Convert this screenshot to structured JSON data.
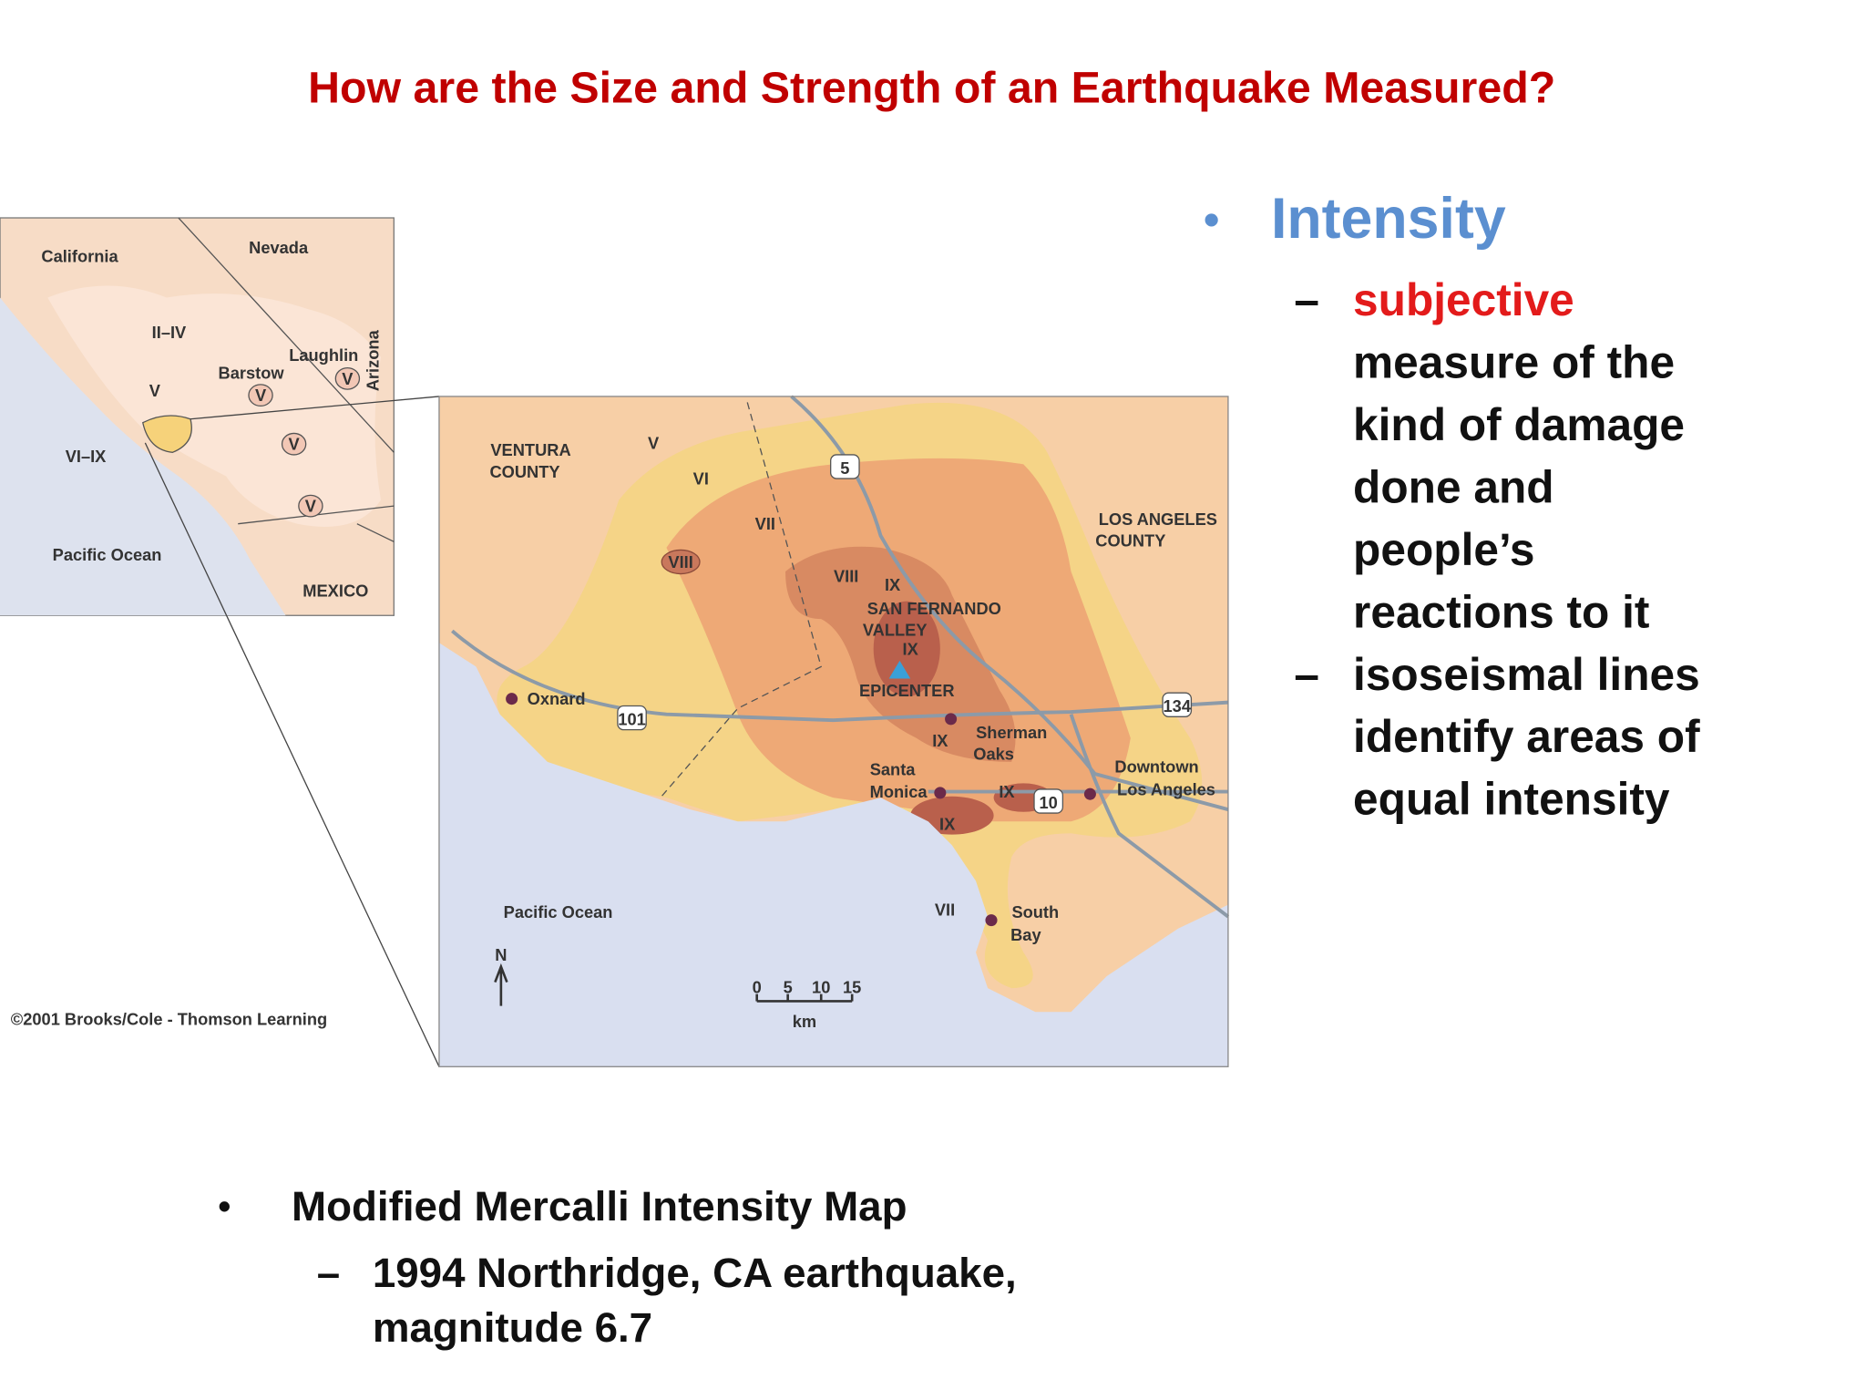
{
  "title": "How are the Size and Strength of an Earthquake Measured?",
  "bullets": [
    {
      "text": "Intensity",
      "subitems": [
        {
          "lines": [
            "subjective",
            "measure of the",
            "kind of damage",
            "done and",
            "people’s",
            "reactions to it"
          ]
        },
        {
          "lines": [
            "isoseismal lines",
            "identify areas of",
            "equal intensity"
          ]
        }
      ]
    }
  ],
  "caption": {
    "text": "Modified Mercalli Intensity Map",
    "subitems": [
      {
        "lines": [
          "1994 Northridge, CA earthquake,",
          "magnitude 6.7"
        ]
      }
    ]
  },
  "inset": {
    "labels": [
      "California",
      "Nevada",
      "Arizona",
      "II–IV",
      "V",
      "Barstow",
      "Laughlin",
      "V",
      "V",
      "V",
      "V",
      "VI–IX",
      "Pacific Ocean",
      "MEXICO",
      "©2001 Brooks/Cole - Thomson Learning"
    ]
  },
  "main_map": {
    "labels": [
      "VENTURA",
      "COUNTY",
      "V",
      "VI",
      "VII",
      "VIII",
      "VIII",
      "IX",
      "SAN FERNANDO",
      "VALLEY",
      "IX",
      "EPICENTER",
      "LOS ANGELES",
      "COUNTY",
      "Oxnard",
      "101",
      "5",
      "134",
      "Sherman",
      "Oaks",
      "IX",
      "Santa",
      "Monica",
      "IX",
      "10",
      "IX",
      "Downtown",
      "Los Angeles",
      "Pacific Ocean",
      "VII",
      "South",
      "Bay",
      "N",
      "0",
      "5",
      "10",
      "15",
      "km"
    ]
  }
}
